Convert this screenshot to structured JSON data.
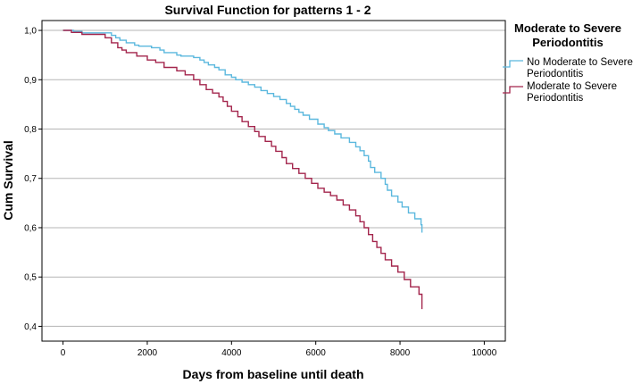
{
  "chart_data": {
    "type": "line",
    "title": "Survival Function for patterns 1 - 2",
    "xlabel": "Days from baseline until death",
    "ylabel": "Cum Survival",
    "xlim": [
      -500,
      10500
    ],
    "ylim": [
      0.37,
      1.02
    ],
    "x_ticks": [
      0,
      2000,
      4000,
      6000,
      8000,
      10000
    ],
    "x_tick_labels": [
      "0",
      "2000",
      "4000",
      "6000",
      "8000",
      "10000"
    ],
    "y_ticks": [
      0.4,
      0.5,
      0.6,
      0.7,
      0.8,
      0.9,
      1.0
    ],
    "y_tick_labels": [
      "0,4",
      "0,5",
      "0,6",
      "0,7",
      "0,8",
      "0,9",
      "1,0"
    ],
    "grid": "horizontal",
    "legend": {
      "title": "Moderate to Severe Periodontitis",
      "title_lines": [
        "Moderate to Severe",
        "Periodontitis"
      ],
      "placement": "top-right"
    },
    "series": [
      {
        "name": "No Moderate to Severe Periodontitis",
        "label_lines": [
          "No Moderate to Severe",
          "Periodontitis"
        ],
        "color": "#5bb8de",
        "x": [
          0,
          250,
          450,
          1150,
          1250,
          1350,
          1500,
          1700,
          1800,
          2100,
          2300,
          2400,
          2700,
          2800,
          3100,
          3250,
          3350,
          3450,
          3600,
          3700,
          3850,
          4000,
          4100,
          4250,
          4400,
          4550,
          4700,
          4850,
          5000,
          5150,
          5300,
          5400,
          5500,
          5600,
          5700,
          5850,
          6050,
          6200,
          6300,
          6450,
          6600,
          6800,
          6950,
          7050,
          7150,
          7250,
          7300,
          7400,
          7550,
          7650,
          7700,
          7800,
          7950,
          8050,
          8200,
          8350,
          8500,
          8520
        ],
        "y": [
          1.0,
          0.998,
          0.995,
          0.99,
          0.985,
          0.98,
          0.975,
          0.97,
          0.968,
          0.965,
          0.96,
          0.955,
          0.95,
          0.948,
          0.945,
          0.94,
          0.935,
          0.93,
          0.925,
          0.92,
          0.91,
          0.905,
          0.9,
          0.895,
          0.89,
          0.885,
          0.878,
          0.872,
          0.866,
          0.86,
          0.852,
          0.846,
          0.84,
          0.834,
          0.828,
          0.82,
          0.81,
          0.803,
          0.797,
          0.79,
          0.782,
          0.773,
          0.764,
          0.756,
          0.746,
          0.735,
          0.722,
          0.712,
          0.7,
          0.688,
          0.676,
          0.664,
          0.652,
          0.642,
          0.63,
          0.618,
          0.606,
          0.59
        ]
      },
      {
        "name": "Moderate to Severe Periodontitis",
        "label_lines": [
          "Moderate to Severe",
          "Periodontitis"
        ],
        "color": "#a3254c",
        "x": [
          0,
          200,
          450,
          1000,
          1150,
          1300,
          1400,
          1500,
          1750,
          2000,
          2200,
          2400,
          2700,
          2900,
          3100,
          3250,
          3400,
          3550,
          3700,
          3800,
          3900,
          4000,
          4150,
          4250,
          4400,
          4550,
          4650,
          4800,
          4950,
          5050,
          5200,
          5300,
          5450,
          5600,
          5750,
          5900,
          6050,
          6200,
          6350,
          6500,
          6650,
          6800,
          6950,
          7050,
          7150,
          7250,
          7350,
          7450,
          7550,
          7650,
          7800,
          7950,
          8100,
          8250,
          8450,
          8520
        ],
        "y": [
          1.0,
          0.996,
          0.992,
          0.985,
          0.975,
          0.965,
          0.96,
          0.955,
          0.948,
          0.94,
          0.935,
          0.925,
          0.918,
          0.91,
          0.9,
          0.89,
          0.88,
          0.873,
          0.865,
          0.856,
          0.846,
          0.836,
          0.825,
          0.815,
          0.805,
          0.795,
          0.785,
          0.775,
          0.765,
          0.755,
          0.742,
          0.73,
          0.72,
          0.71,
          0.7,
          0.69,
          0.68,
          0.672,
          0.665,
          0.656,
          0.646,
          0.636,
          0.624,
          0.612,
          0.6,
          0.586,
          0.572,
          0.56,
          0.548,
          0.535,
          0.522,
          0.51,
          0.495,
          0.48,
          0.465,
          0.435
        ]
      }
    ]
  }
}
